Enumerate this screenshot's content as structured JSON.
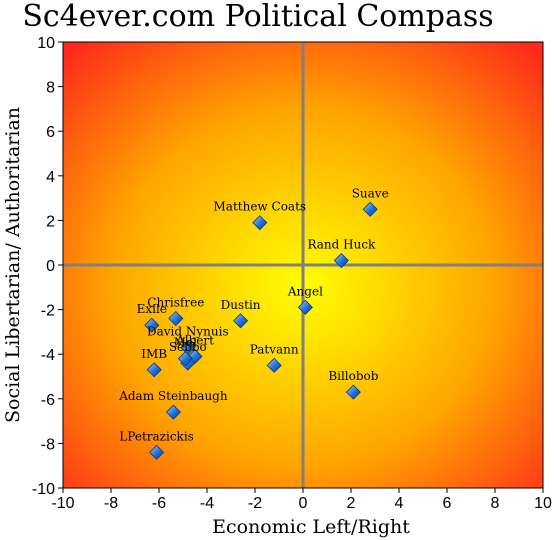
{
  "chart_data": {
    "type": "scatter",
    "title": "Sc4ever.com Political Compass",
    "xlabel": "Economic Left/Right",
    "ylabel": "Social Libertarian/ Authoritarian",
    "xlim": [
      -10,
      10
    ],
    "ylim": [
      -10,
      10
    ],
    "x_ticks": [
      -10,
      -8,
      -6,
      -4,
      -2,
      0,
      2,
      4,
      6,
      8,
      10
    ],
    "y_ticks": [
      -10,
      -8,
      -6,
      -4,
      -2,
      0,
      2,
      4,
      6,
      8,
      10
    ],
    "grid": false,
    "points": [
      {
        "label": "Suave",
        "x": 2.8,
        "y": 2.5
      },
      {
        "label": "Matthew Coats",
        "x": -1.8,
        "y": 1.9
      },
      {
        "label": "Rand Huck",
        "x": 1.6,
        "y": 0.2
      },
      {
        "label": "Angel",
        "x": 0.1,
        "y": -1.9
      },
      {
        "label": "Dustin",
        "x": -2.6,
        "y": -2.5
      },
      {
        "label": "Chrisfree",
        "x": -5.3,
        "y": -2.4
      },
      {
        "label": "Exile",
        "x": -6.3,
        "y": -2.7
      },
      {
        "label": "David Nynuis",
        "x": -4.8,
        "y": -3.7
      },
      {
        "label": "Albert",
        "x": -4.5,
        "y": -4.1
      },
      {
        "label": "Sebbo",
        "x": -4.8,
        "y": -4.4
      },
      {
        "label": "Mel",
        "x": -4.9,
        "y": -4.2
      },
      {
        "label": "IMB",
        "x": -6.2,
        "y": -4.7
      },
      {
        "label": "Patvann",
        "x": -1.2,
        "y": -4.5
      },
      {
        "label": "Billobob",
        "x": 2.1,
        "y": -5.7
      },
      {
        "label": "Adam Steinbaugh",
        "x": -5.4,
        "y": -6.6
      },
      {
        "label": "LPetrazickis",
        "x": -6.1,
        "y": -8.4
      }
    ]
  },
  "colors": {
    "center": "#ffff00",
    "mid": "#ffa500",
    "edge": "#ff2a1a",
    "marker": "#1f6fd6",
    "marker_light": "#a9d1ff",
    "axis": "#808080",
    "frame": "#000000"
  },
  "icons": {
    "marker": "diamond-marker-icon"
  }
}
